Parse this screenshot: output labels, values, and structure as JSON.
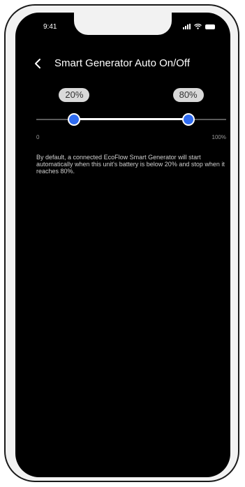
{
  "status_bar": {
    "time": "9:41",
    "icons": [
      "signal-icon",
      "wifi-icon",
      "battery-icon"
    ]
  },
  "header": {
    "back_icon": "chevron-left-icon",
    "title": "Smart Generator Auto On/Off"
  },
  "slider": {
    "min_label": "0",
    "max_label": "100%",
    "low_value_label": "20%",
    "high_value_label": "80%",
    "low_value": 20,
    "high_value": 80,
    "colors": {
      "thumb": "#2f6bf0",
      "active_track": "#ffffff",
      "inactive_track": "#5a5a5a"
    }
  },
  "description": "By default, a connected EcoFlow Smart Generator will start automatically when this unit's battery is below 20% and stop when it reaches 80%."
}
